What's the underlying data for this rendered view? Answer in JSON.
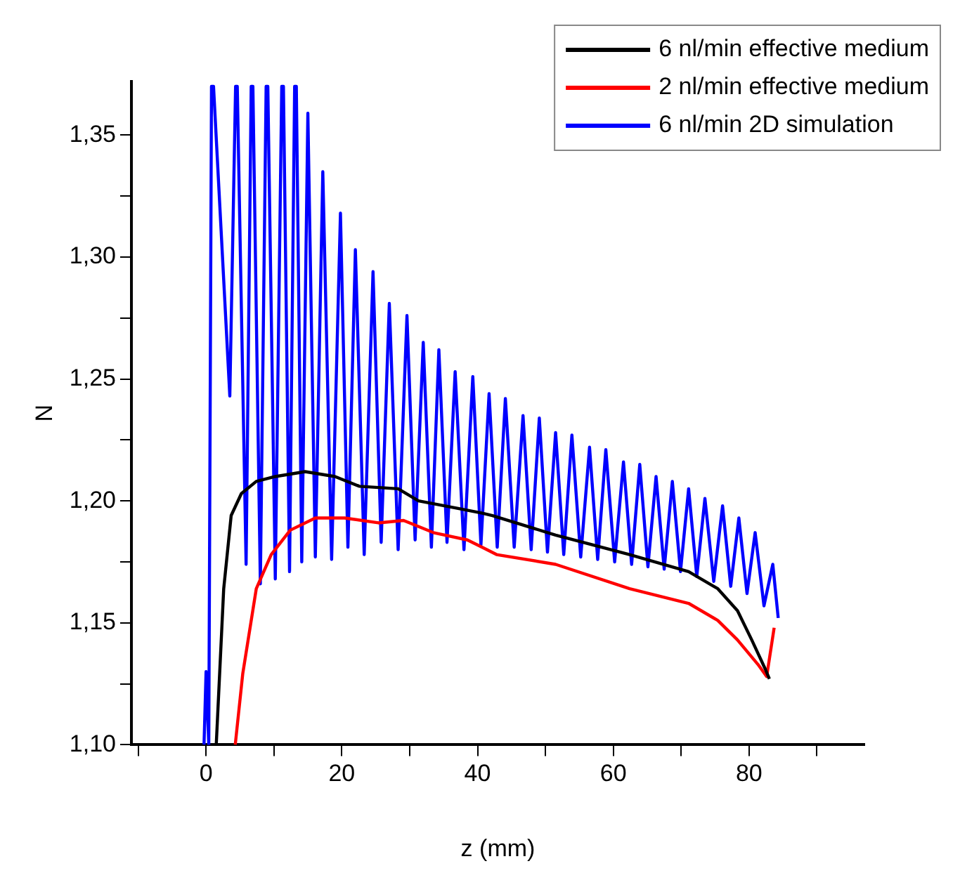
{
  "chart_data": {
    "type": "line",
    "xlabel": "z (mm)",
    "ylabel": "N",
    "xlim": [
      -11,
      97
    ],
    "ylim": [
      1.1,
      1.372
    ],
    "xticks": [
      {
        "value": -10,
        "label": null
      },
      0,
      {
        "value": 10,
        "label": null
      },
      20,
      {
        "value": 30,
        "label": null
      },
      40,
      {
        "value": 50,
        "label": null
      },
      60,
      {
        "value": 70,
        "label": null
      },
      80,
      {
        "value": 90,
        "label": null
      }
    ],
    "yticks": [
      {
        "value": 1.1,
        "label": "1,10"
      },
      {
        "value": 1.125,
        "label": null
      },
      {
        "value": 1.15,
        "label": "1,15"
      },
      {
        "value": 1.175,
        "label": null
      },
      {
        "value": 1.2,
        "label": "1,20"
      },
      {
        "value": 1.225,
        "label": null
      },
      {
        "value": 1.25,
        "label": "1,25"
      },
      {
        "value": 1.275,
        "label": null
      },
      {
        "value": 1.3,
        "label": "1,30"
      },
      {
        "value": 1.325,
        "label": null
      },
      {
        "value": 1.35,
        "label": "1,35"
      }
    ],
    "legend": "top right",
    "marker": "none",
    "series": [
      {
        "name": "6 nl/min effective medium",
        "color": "#000000",
        "x": [
          1.5,
          2.6,
          3.7,
          5.2,
          7.4,
          10.2,
          14.6,
          19,
          22.6,
          28.3,
          31.3,
          37,
          40.7,
          42.2,
          51.5,
          62.4,
          71.1,
          75.4,
          78.3,
          80.4,
          82.4,
          83
        ],
        "values": [
          1.1,
          1.164,
          1.194,
          1.203,
          1.208,
          1.21,
          1.212,
          1.21,
          1.206,
          1.205,
          1.2,
          1.197,
          1.195,
          1.194,
          1.186,
          1.178,
          1.171,
          1.164,
          1.155,
          1.143,
          1.131,
          1.127
        ]
      },
      {
        "name": "2 nl/min effective medium",
        "color": "#ff0000",
        "x": [
          4.3,
          5.4,
          7.4,
          9.6,
          12.4,
          16.1,
          20.4,
          25.4,
          29.1,
          33.5,
          38.5,
          40.7,
          42.8,
          51.5,
          62.4,
          71.1,
          75.4,
          78.3,
          81.3,
          82.6,
          83.7
        ],
        "values": [
          1.1,
          1.129,
          1.164,
          1.178,
          1.188,
          1.193,
          1.193,
          1.191,
          1.192,
          1.187,
          1.184,
          1.181,
          1.178,
          1.174,
          1.164,
          1.158,
          1.151,
          1.143,
          1.133,
          1.128,
          1.148
        ]
      },
      {
        "name": "6 nl/min 2D simulation",
        "color": "#0000ff",
        "x": [
          -0.3,
          0,
          0.4,
          0.8,
          1.1,
          3.5,
          4.35,
          4.6,
          5.9,
          6.65,
          6.9,
          8,
          8.85,
          9.1,
          10.2,
          11.15,
          11.4,
          12.3,
          13.05,
          13.3,
          14.1,
          15,
          16.1,
          17.2,
          18.5,
          19.8,
          20.9,
          22,
          23.3,
          24.6,
          25.8,
          27,
          28.3,
          29.6,
          30.8,
          32,
          33.2,
          34.3,
          35.5,
          36.7,
          38,
          39.3,
          40.5,
          41.7,
          42.9,
          44.1,
          45.4,
          46.7,
          47.9,
          49.1,
          50.3,
          51.5,
          52.7,
          53.9,
          55.2,
          56.5,
          57.7,
          58.9,
          60.2,
          61.5,
          62.7,
          63.9,
          65.1,
          66.3,
          67.5,
          68.7,
          69.9,
          71.1,
          72.3,
          73.5,
          74.8,
          76.1,
          77.3,
          78.5,
          79.7,
          80.9,
          82.2,
          83.5,
          84.3
        ],
        "values": [
          1.1,
          1.13,
          1.1,
          1.37,
          1.37,
          1.243,
          1.37,
          1.37,
          1.174,
          1.37,
          1.37,
          1.166,
          1.37,
          1.37,
          1.168,
          1.37,
          1.37,
          1.171,
          1.37,
          1.37,
          1.175,
          1.359,
          1.177,
          1.335,
          1.176,
          1.318,
          1.181,
          1.303,
          1.178,
          1.294,
          1.183,
          1.281,
          1.18,
          1.276,
          1.184,
          1.265,
          1.181,
          1.262,
          1.183,
          1.253,
          1.18,
          1.251,
          1.182,
          1.244,
          1.181,
          1.242,
          1.181,
          1.235,
          1.18,
          1.234,
          1.179,
          1.228,
          1.178,
          1.227,
          1.177,
          1.222,
          1.176,
          1.221,
          1.175,
          1.216,
          1.174,
          1.215,
          1.173,
          1.21,
          1.172,
          1.208,
          1.171,
          1.205,
          1.169,
          1.201,
          1.167,
          1.198,
          1.165,
          1.193,
          1.162,
          1.187,
          1.157,
          1.174,
          1.152
        ]
      }
    ]
  }
}
